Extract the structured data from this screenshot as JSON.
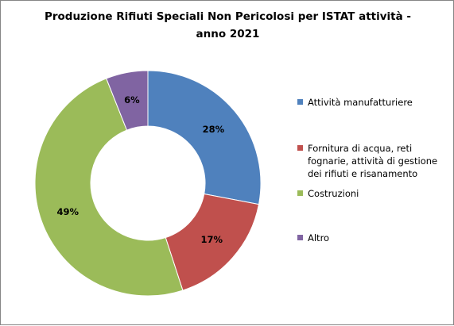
{
  "chart_data": {
    "type": "pie",
    "subtype": "donut",
    "title_line1": "Produzione Rifiuti Speciali Non Pericolosi per ISTAT attività -",
    "title_line2": "anno 2021",
    "categories": [
      "Attività manufatturiere",
      "Fornitura di acqua, reti fognarie, attività di gestione dei rifiuti e risanamento",
      "Costruzioni",
      "Altro"
    ],
    "values": [
      28,
      17,
      49,
      6
    ],
    "data_labels": [
      "28%",
      "17%",
      "49%",
      "6%"
    ],
    "colors": [
      "#4F81BD",
      "#C0504D",
      "#9BBB59",
      "#8064A2"
    ],
    "legend_position": "right"
  }
}
